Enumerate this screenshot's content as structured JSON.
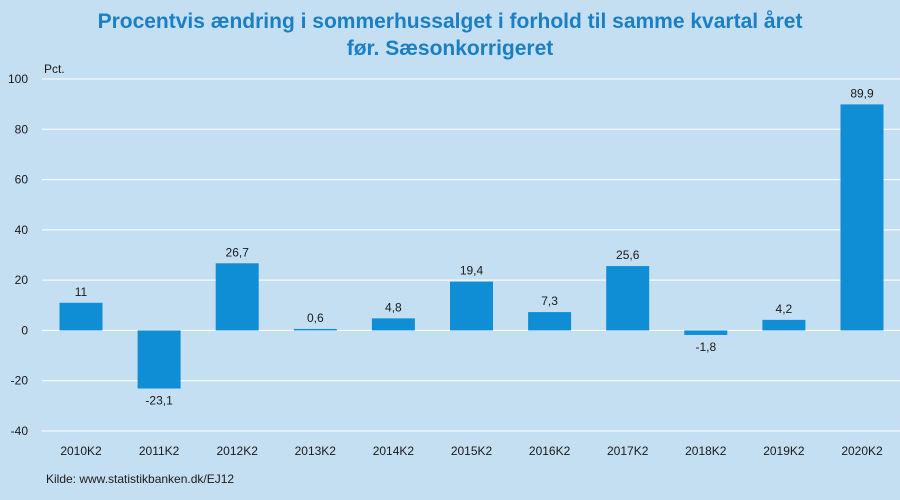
{
  "chart_data": {
    "type": "bar",
    "title_line1": "Procentvis ændring i sommerhussalget i forhold til samme kvartal året",
    "title_line2": "før. Sæsonkorrigeret",
    "ylabel": "Pct.",
    "xlabel": "",
    "categories": [
      "2010K2",
      "2011K2",
      "2012K2",
      "2013K2",
      "2014K2",
      "2015K2",
      "2016K2",
      "2017K2",
      "2018K2",
      "2019K2",
      "2020K2"
    ],
    "values": [
      11,
      -23.1,
      26.7,
      0.6,
      4.8,
      19.4,
      7.3,
      25.6,
      -1.8,
      4.2,
      89.9
    ],
    "value_labels": [
      "11",
      "-23,1",
      "26,7",
      "0,6",
      "4,8",
      "19,4",
      "7,3",
      "25,6",
      "-1,8",
      "4,2",
      "89,9"
    ],
    "ylim": [
      -40,
      100
    ],
    "yticks": [
      -40,
      -20,
      0,
      20,
      40,
      60,
      80,
      100
    ],
    "grid": true,
    "bar_color": "#0f8ed6",
    "source": "Kilde: www.statistikbanken.dk/EJ12"
  }
}
